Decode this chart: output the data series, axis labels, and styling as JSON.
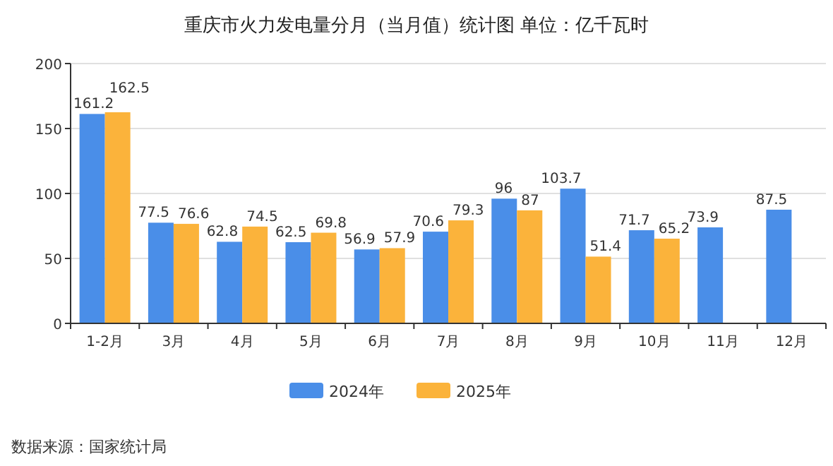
{
  "chart_data": {
    "type": "bar",
    "title": "重庆市火力发电量分月（当月值）统计图 单位：亿千瓦时",
    "categories": [
      "1-2月",
      "3月",
      "4月",
      "5月",
      "6月",
      "7月",
      "8月",
      "9月",
      "10月",
      "11月",
      "12月"
    ],
    "series": [
      {
        "name": "2024年",
        "color": "#4a8ee8",
        "values": [
          161.2,
          77.5,
          62.8,
          62.5,
          56.9,
          70.6,
          96,
          103.7,
          71.7,
          73.9,
          87.5
        ]
      },
      {
        "name": "2025年",
        "color": "#fbb33b",
        "values": [
          162.5,
          76.6,
          74.5,
          69.8,
          57.9,
          79.3,
          87,
          51.4,
          65.2,
          null,
          null
        ]
      }
    ],
    "ylim": [
      0,
      200
    ],
    "yticks": [
      0,
      50,
      100,
      150,
      200
    ],
    "grid": "y",
    "legend": "bottom",
    "data_labels": true,
    "annotations": [
      "数据来源：国家统计局"
    ]
  }
}
